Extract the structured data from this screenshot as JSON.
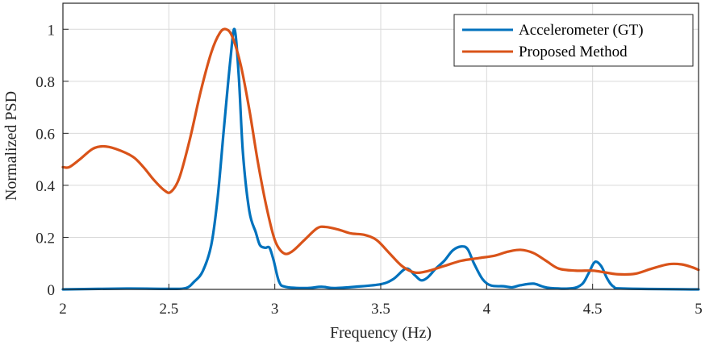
{
  "chart_data": {
    "type": "line",
    "xlabel": "Frequency (Hz)",
    "ylabel": "Normalized PSD",
    "xlim": [
      2,
      5
    ],
    "ylim": [
      0,
      1.1
    ],
    "x_ticks": [
      2,
      2.5,
      3,
      3.5,
      4,
      4.5,
      5
    ],
    "x_tick_labels": [
      "2",
      "2.5",
      "3",
      "3.5",
      "4",
      "4.5",
      "5"
    ],
    "y_ticks": [
      0,
      0.2,
      0.4,
      0.6,
      0.8,
      1
    ],
    "y_tick_labels": [
      "0",
      "0.2",
      "0.4",
      "0.6",
      "0.8",
      "1"
    ],
    "grid": true,
    "legend_position": "top-right",
    "series": [
      {
        "name": "Accelerometer (GT)",
        "color": "#0072BD",
        "points": [
          [
            2.0,
            0.0
          ],
          [
            2.3,
            0.003
          ],
          [
            2.5,
            0.002
          ],
          [
            2.58,
            0.005
          ],
          [
            2.62,
            0.03
          ],
          [
            2.66,
            0.07
          ],
          [
            2.7,
            0.17
          ],
          [
            2.73,
            0.35
          ],
          [
            2.76,
            0.62
          ],
          [
            2.79,
            0.88
          ],
          [
            2.81,
            1.0
          ],
          [
            2.83,
            0.82
          ],
          [
            2.85,
            0.52
          ],
          [
            2.88,
            0.3
          ],
          [
            2.91,
            0.22
          ],
          [
            2.93,
            0.17
          ],
          [
            2.955,
            0.16
          ],
          [
            2.975,
            0.16
          ],
          [
            2.995,
            0.11
          ],
          [
            3.02,
            0.03
          ],
          [
            3.05,
            0.01
          ],
          [
            3.15,
            0.005
          ],
          [
            3.22,
            0.01
          ],
          [
            3.28,
            0.005
          ],
          [
            3.38,
            0.01
          ],
          [
            3.5,
            0.02
          ],
          [
            3.56,
            0.04
          ],
          [
            3.62,
            0.08
          ],
          [
            3.66,
            0.055
          ],
          [
            3.69,
            0.035
          ],
          [
            3.72,
            0.045
          ],
          [
            3.76,
            0.08
          ],
          [
            3.8,
            0.11
          ],
          [
            3.84,
            0.15
          ],
          [
            3.88,
            0.165
          ],
          [
            3.91,
            0.155
          ],
          [
            3.94,
            0.1
          ],
          [
            3.98,
            0.04
          ],
          [
            4.02,
            0.015
          ],
          [
            4.08,
            0.012
          ],
          [
            4.12,
            0.008
          ],
          [
            4.16,
            0.016
          ],
          [
            4.22,
            0.022
          ],
          [
            4.26,
            0.012
          ],
          [
            4.3,
            0.005
          ],
          [
            4.4,
            0.004
          ],
          [
            4.45,
            0.02
          ],
          [
            4.48,
            0.06
          ],
          [
            4.51,
            0.105
          ],
          [
            4.54,
            0.09
          ],
          [
            4.57,
            0.04
          ],
          [
            4.6,
            0.01
          ],
          [
            4.65,
            0.003
          ],
          [
            5.0,
            0.0
          ]
        ]
      },
      {
        "name": "Proposed Method",
        "color": "#D95319",
        "points": [
          [
            2.0,
            0.47
          ],
          [
            2.03,
            0.47
          ],
          [
            2.08,
            0.5
          ],
          [
            2.14,
            0.54
          ],
          [
            2.19,
            0.55
          ],
          [
            2.25,
            0.54
          ],
          [
            2.33,
            0.51
          ],
          [
            2.38,
            0.47
          ],
          [
            2.43,
            0.42
          ],
          [
            2.48,
            0.38
          ],
          [
            2.51,
            0.375
          ],
          [
            2.55,
            0.43
          ],
          [
            2.6,
            0.58
          ],
          [
            2.65,
            0.76
          ],
          [
            2.7,
            0.91
          ],
          [
            2.74,
            0.985
          ],
          [
            2.77,
            1.0
          ],
          [
            2.8,
            0.97
          ],
          [
            2.84,
            0.86
          ],
          [
            2.88,
            0.69
          ],
          [
            2.92,
            0.49
          ],
          [
            2.96,
            0.32
          ],
          [
            3.0,
            0.19
          ],
          [
            3.04,
            0.14
          ],
          [
            3.08,
            0.145
          ],
          [
            3.14,
            0.19
          ],
          [
            3.2,
            0.235
          ],
          [
            3.24,
            0.24
          ],
          [
            3.3,
            0.23
          ],
          [
            3.36,
            0.215
          ],
          [
            3.42,
            0.21
          ],
          [
            3.48,
            0.19
          ],
          [
            3.54,
            0.14
          ],
          [
            3.6,
            0.09
          ],
          [
            3.66,
            0.065
          ],
          [
            3.72,
            0.07
          ],
          [
            3.8,
            0.09
          ],
          [
            3.88,
            0.11
          ],
          [
            3.96,
            0.12
          ],
          [
            4.04,
            0.13
          ],
          [
            4.1,
            0.145
          ],
          [
            4.16,
            0.152
          ],
          [
            4.22,
            0.14
          ],
          [
            4.28,
            0.11
          ],
          [
            4.34,
            0.08
          ],
          [
            4.42,
            0.072
          ],
          [
            4.5,
            0.072
          ],
          [
            4.56,
            0.065
          ],
          [
            4.62,
            0.058
          ],
          [
            4.7,
            0.06
          ],
          [
            4.78,
            0.08
          ],
          [
            4.86,
            0.097
          ],
          [
            4.92,
            0.096
          ],
          [
            4.97,
            0.085
          ],
          [
            5.0,
            0.075
          ]
        ]
      }
    ]
  }
}
